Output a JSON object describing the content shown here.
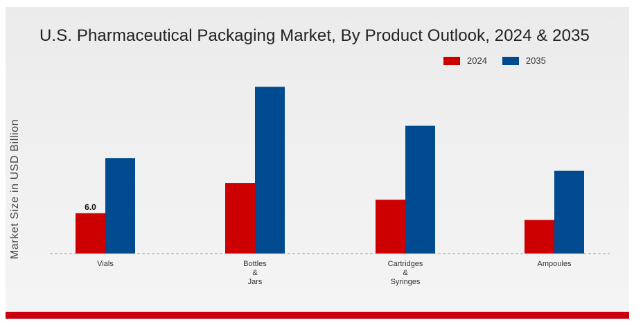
{
  "chart_data": {
    "type": "bar",
    "title": "U.S. Pharmaceutical Packaging Market, By Product Outlook, 2024 & 2035",
    "ylabel": "Market Size in USD Billion",
    "xlabel": "",
    "categories": [
      [
        "Vials"
      ],
      [
        "Bottles",
        "&",
        "Jars"
      ],
      [
        "Cartridges",
        "&",
        "Syringes"
      ],
      [
        "Ampoules"
      ]
    ],
    "series": [
      {
        "name": "2024",
        "color": "#cc0000",
        "values": [
          6.0,
          10.5,
          8.0,
          5.0
        ]
      },
      {
        "name": "2035",
        "color": "#004a8f",
        "values": [
          14.2,
          24.8,
          19.0,
          12.3
        ]
      }
    ],
    "data_labels": [
      {
        "series": 0,
        "index": 0,
        "text": "6.0"
      }
    ],
    "ylim": [
      0,
      34
    ],
    "grid": false,
    "baseline": "dashed",
    "legend": "top-right"
  }
}
